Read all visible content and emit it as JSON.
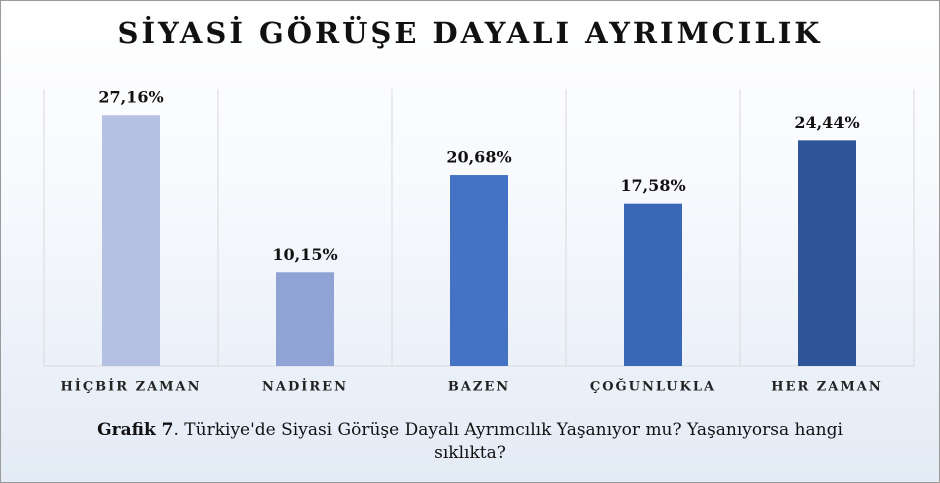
{
  "chart_data": {
    "type": "bar",
    "title": "SİYASİ GÖRÜŞE DAYALI AYRIMCILIK",
    "categories": [
      "HİÇBİR ZAMAN",
      "NADİREN",
      "BAZEN",
      "ÇOĞUNLUKLA",
      "HER ZAMAN"
    ],
    "values": [
      27.16,
      10.15,
      20.68,
      17.58,
      24.44
    ],
    "value_labels": [
      "27,16%",
      "10,15%",
      "20,68%",
      "17,58%",
      "24,44%"
    ],
    "colors": [
      "#b4c1e2",
      "#8fa3d4",
      "#4472c4",
      "#3b67b8",
      "#2d5597"
    ],
    "ylim": [
      0,
      30
    ],
    "caption_label": "Grafik 7",
    "caption_text": ". Türkiye'de Siyasi Görüşe Dayalı Ayrımcılık Yaşanıyor mu? Yaşanıyorsa hangi sıklıkta?"
  }
}
